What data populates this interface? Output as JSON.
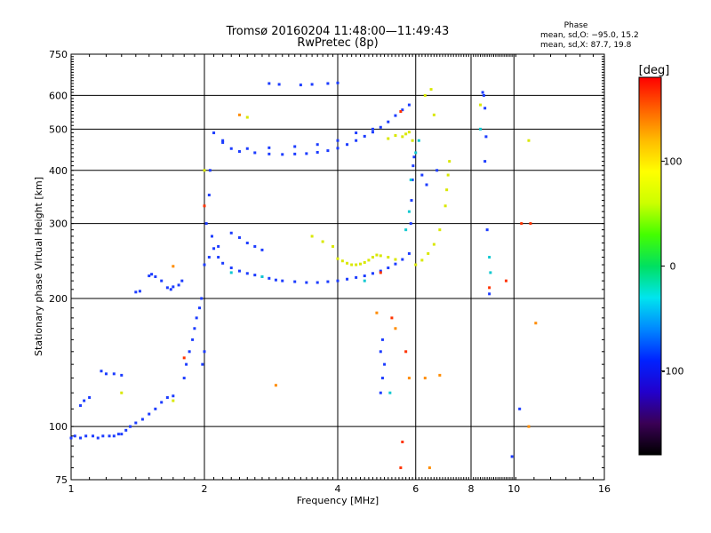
{
  "chart_data": {
    "type": "scatter",
    "title": "Tromsø 20160204 11:48:00—11:49:43",
    "subtitle": "RwPretec (8p)",
    "xlabel": "Frequency [MHz]",
    "ylabel": "Stationary phase Virtual Height [km]",
    "x_scale": "log",
    "y_scale": "log",
    "xlim": [
      1,
      16
    ],
    "ylim": [
      75,
      750
    ],
    "x_ticks": [
      1,
      2,
      4,
      6,
      8,
      10,
      16
    ],
    "y_ticks": [
      75,
      100,
      200,
      300,
      400,
      500,
      600,
      750
    ],
    "grid": true,
    "stats": {
      "heading": "Phase",
      "line_o": "mean, sd,O: −95.0, 15.2",
      "line_x": "mean, sd,X:  87.7, 19.8"
    },
    "colorbar": {
      "unit": "[deg]",
      "range": [
        -180,
        180
      ],
      "ticks": [
        100,
        0,
        -100
      ],
      "colors": [
        "#000000",
        "#3a0055",
        "#2200cc",
        "#0022ff",
        "#0088ff",
        "#00e5ee",
        "#00e060",
        "#44ff00",
        "#ccff00",
        "#ffff00",
        "#ffbb00",
        "#ff6000",
        "#ff0000"
      ]
    },
    "series": [
      {
        "name": "",
        "phase": -100,
        "color": "#1c3cff",
        "points": [
          [
            1.0,
            94
          ],
          [
            1.02,
            95
          ],
          [
            1.05,
            94
          ],
          [
            1.08,
            95
          ],
          [
            1.12,
            95
          ],
          [
            1.15,
            94
          ],
          [
            1.18,
            95
          ],
          [
            1.22,
            95
          ],
          [
            1.25,
            95
          ],
          [
            1.28,
            96
          ],
          [
            1.3,
            96
          ],
          [
            1.33,
            98
          ],
          [
            1.36,
            100
          ],
          [
            1.4,
            102
          ],
          [
            1.45,
            104
          ],
          [
            1.5,
            107
          ],
          [
            1.55,
            110
          ],
          [
            1.6,
            114
          ],
          [
            1.65,
            117
          ],
          [
            1.7,
            118
          ],
          [
            1.05,
            112
          ],
          [
            1.07,
            115
          ],
          [
            1.1,
            117
          ],
          [
            1.17,
            135
          ],
          [
            1.2,
            133
          ],
          [
            1.25,
            133
          ],
          [
            1.3,
            132
          ],
          [
            1.4,
            207
          ],
          [
            1.43,
            208
          ],
          [
            1.5,
            226
          ],
          [
            1.52,
            228
          ],
          [
            1.55,
            225
          ],
          [
            1.6,
            220
          ],
          [
            1.65,
            212
          ],
          [
            1.68,
            210
          ],
          [
            1.7,
            213
          ],
          [
            1.75,
            215
          ],
          [
            1.78,
            220
          ],
          [
            1.8,
            130
          ],
          [
            1.82,
            140
          ],
          [
            1.85,
            150
          ],
          [
            1.88,
            160
          ],
          [
            1.9,
            170
          ],
          [
            1.92,
            180
          ],
          [
            1.95,
            190
          ],
          [
            1.97,
            200
          ],
          [
            1.98,
            140
          ],
          [
            2.0,
            150
          ],
          [
            2.0,
            240
          ],
          [
            2.02,
            300
          ],
          [
            2.05,
            350
          ],
          [
            2.06,
            400
          ],
          [
            2.08,
            280
          ],
          [
            2.1,
            262
          ],
          [
            2.15,
            250
          ],
          [
            2.2,
            242
          ],
          [
            2.3,
            236
          ],
          [
            2.4,
            232
          ],
          [
            2.5,
            229
          ],
          [
            2.6,
            227
          ],
          [
            2.7,
            225
          ],
          [
            2.8,
            223
          ],
          [
            2.9,
            221
          ],
          [
            3.0,
            220
          ],
          [
            3.2,
            219
          ],
          [
            3.4,
            218
          ],
          [
            3.6,
            218
          ],
          [
            3.8,
            219
          ],
          [
            4.0,
            220
          ],
          [
            4.2,
            222
          ],
          [
            4.4,
            224
          ],
          [
            4.6,
            226
          ],
          [
            4.8,
            229
          ],
          [
            5.0,
            232
          ],
          [
            5.2,
            236
          ],
          [
            5.4,
            241
          ],
          [
            5.6,
            247
          ],
          [
            5.8,
            255
          ],
          [
            2.05,
            250
          ],
          [
            2.15,
            265
          ],
          [
            2.3,
            285
          ],
          [
            2.4,
            278
          ],
          [
            2.5,
            270
          ],
          [
            2.6,
            265
          ],
          [
            2.7,
            260
          ],
          [
            2.1,
            490
          ],
          [
            2.2,
            470
          ],
          [
            2.3,
            450
          ],
          [
            2.4,
            443
          ],
          [
            2.6,
            440
          ],
          [
            2.8,
            437
          ],
          [
            3.0,
            436
          ],
          [
            3.2,
            437
          ],
          [
            3.4,
            438
          ],
          [
            3.6,
            441
          ],
          [
            3.8,
            445
          ],
          [
            4.0,
            451
          ],
          [
            4.2,
            460
          ],
          [
            4.4,
            470
          ],
          [
            4.6,
            481
          ],
          [
            4.8,
            492
          ],
          [
            5.0,
            505
          ],
          [
            5.2,
            520
          ],
          [
            5.4,
            538
          ],
          [
            5.6,
            555
          ],
          [
            5.8,
            570
          ],
          [
            2.2,
            465
          ],
          [
            2.5,
            450
          ],
          [
            2.8,
            452
          ],
          [
            3.2,
            455
          ],
          [
            3.6,
            460
          ],
          [
            4.0,
            470
          ],
          [
            4.4,
            490
          ],
          [
            4.8,
            500
          ],
          [
            2.8,
            640
          ],
          [
            2.95,
            637
          ],
          [
            3.3,
            635
          ],
          [
            3.5,
            637
          ],
          [
            3.8,
            640
          ],
          [
            4.0,
            642
          ],
          [
            5.85,
            300
          ],
          [
            5.87,
            340
          ],
          [
            5.9,
            380
          ],
          [
            5.92,
            410
          ],
          [
            5.95,
            430
          ],
          [
            6.2,
            390
          ],
          [
            6.35,
            370
          ],
          [
            6.7,
            400
          ],
          [
            5.0,
            120
          ],
          [
            5.05,
            130
          ],
          [
            5.1,
            140
          ],
          [
            5.0,
            150
          ],
          [
            5.05,
            160
          ],
          [
            8.5,
            610
          ],
          [
            8.55,
            600
          ],
          [
            8.6,
            560
          ],
          [
            8.65,
            480
          ],
          [
            8.6,
            420
          ],
          [
            8.7,
            290
          ],
          [
            8.8,
            205
          ],
          [
            10.3,
            110
          ],
          [
            9.9,
            85
          ]
        ]
      },
      {
        "name": "",
        "phase": 100,
        "color": "#d9e800",
        "points": [
          [
            4.0,
            248
          ],
          [
            4.1,
            245
          ],
          [
            4.2,
            242
          ],
          [
            4.3,
            240
          ],
          [
            4.4,
            240
          ],
          [
            4.5,
            241
          ],
          [
            4.6,
            243
          ],
          [
            4.7,
            246
          ],
          [
            4.8,
            250
          ],
          [
            4.9,
            253
          ],
          [
            5.0,
            252
          ],
          [
            5.2,
            250
          ],
          [
            5.4,
            247
          ],
          [
            5.6,
            480
          ],
          [
            5.7,
            487
          ],
          [
            5.8,
            492
          ],
          [
            5.9,
            470
          ],
          [
            5.2,
            475
          ],
          [
            5.4,
            483
          ],
          [
            6.0,
            240
          ],
          [
            6.2,
            246
          ],
          [
            6.4,
            255
          ],
          [
            6.6,
            268
          ],
          [
            6.8,
            290
          ],
          [
            7.0,
            330
          ],
          [
            7.05,
            360
          ],
          [
            7.1,
            390
          ],
          [
            7.15,
            420
          ],
          [
            3.5,
            280
          ],
          [
            3.7,
            272
          ],
          [
            3.9,
            265
          ],
          [
            1.3,
            120
          ],
          [
            1.7,
            115
          ],
          [
            2.0,
            400
          ],
          [
            2.5,
            533
          ],
          [
            6.3,
            600
          ],
          [
            6.5,
            620
          ],
          [
            6.6,
            540
          ],
          [
            8.4,
            570
          ],
          [
            10.8,
            470
          ]
        ]
      },
      {
        "name": "",
        "phase": 30,
        "color": "#10c8d0",
        "points": [
          [
            2.3,
            230
          ],
          [
            2.7,
            225
          ],
          [
            4.6,
            220
          ],
          [
            5.7,
            290
          ],
          [
            5.8,
            320
          ],
          [
            5.85,
            380
          ],
          [
            6.0,
            440
          ],
          [
            6.1,
            470
          ],
          [
            8.4,
            500
          ],
          [
            8.8,
            250
          ],
          [
            8.85,
            230
          ],
          [
            5.25,
            120
          ]
        ]
      },
      {
        "name": "",
        "phase": 160,
        "color": "#ff3300",
        "points": [
          [
            1.8,
            145
          ],
          [
            2.0,
            330
          ],
          [
            5.0,
            230
          ],
          [
            5.3,
            180
          ],
          [
            5.55,
            550
          ],
          [
            8.8,
            212
          ],
          [
            9.6,
            220
          ],
          [
            10.4,
            300
          ],
          [
            10.9,
            300
          ],
          [
            5.7,
            150
          ],
          [
            5.6,
            92
          ],
          [
            5.55,
            80
          ]
        ]
      },
      {
        "name": "",
        "phase": 135,
        "color": "#ff8c00",
        "points": [
          [
            1.7,
            238
          ],
          [
            2.4,
            540
          ],
          [
            4.9,
            185
          ],
          [
            5.4,
            170
          ],
          [
            6.3,
            130
          ],
          [
            6.8,
            132
          ],
          [
            2.9,
            125
          ],
          [
            10.8,
            100
          ],
          [
            11.2,
            175
          ],
          [
            5.8,
            130
          ],
          [
            6.45,
            80
          ]
        ]
      }
    ]
  }
}
